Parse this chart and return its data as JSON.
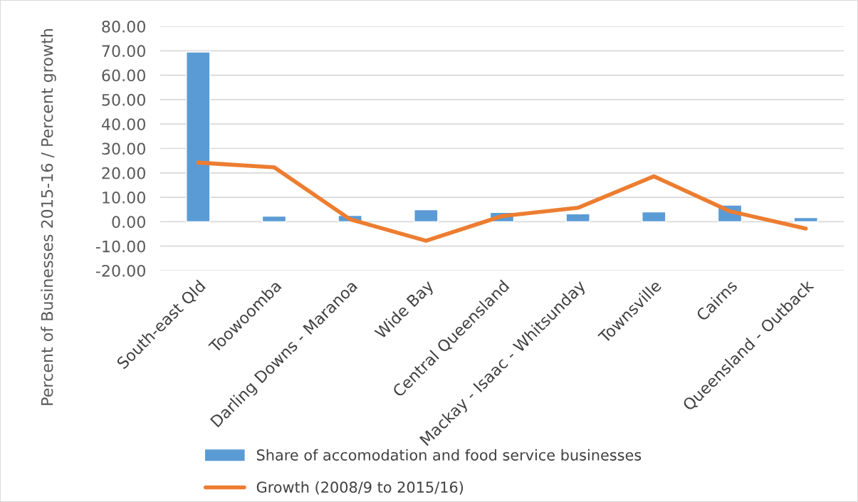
{
  "chart_data": {
    "type": "bar",
    "ylabel": "Percent of Businesses 2015-16 / Percent growth",
    "categories": [
      "South-east Qld",
      "Toowoomba",
      "Darling Downs - Maranoa",
      "Wide Bay",
      "Central Queensland",
      "Mackay - Isaac - Whitsunday",
      "Townsville",
      "Cairns",
      "Queensland - Outback"
    ],
    "series": [
      {
        "name": "Share of accomodation and food service businesses",
        "color": "#5b9bd5",
        "values": [
          69.5,
          2.3,
          2.6,
          4.9,
          3.8,
          3.2,
          4.0,
          6.8,
          1.7
        ]
      },
      {
        "name": "Growth (2008/9 to 2015/16)",
        "type": "line",
        "color": "#ed7d31",
        "values": [
          24.2,
          22.3,
          1.0,
          -7.8,
          2.3,
          5.7,
          18.6,
          4.3,
          -2.8
        ]
      }
    ],
    "ylim": [
      -20,
      80
    ],
    "yticks": [
      {
        "value": -20,
        "label": "-20.00"
      },
      {
        "value": -10,
        "label": "-10.00"
      },
      {
        "value": 0,
        "label": "0.00"
      },
      {
        "value": 10,
        "label": "10.00"
      },
      {
        "value": 20,
        "label": "20.00"
      },
      {
        "value": 30,
        "label": "30.00"
      },
      {
        "value": 40,
        "label": "40.00"
      },
      {
        "value": 50,
        "label": "50.00"
      },
      {
        "value": 60,
        "label": "60.00"
      },
      {
        "value": 70,
        "label": "70.00"
      },
      {
        "value": 80,
        "label": "80.00"
      }
    ],
    "grid": "y",
    "legend": "bottom"
  }
}
